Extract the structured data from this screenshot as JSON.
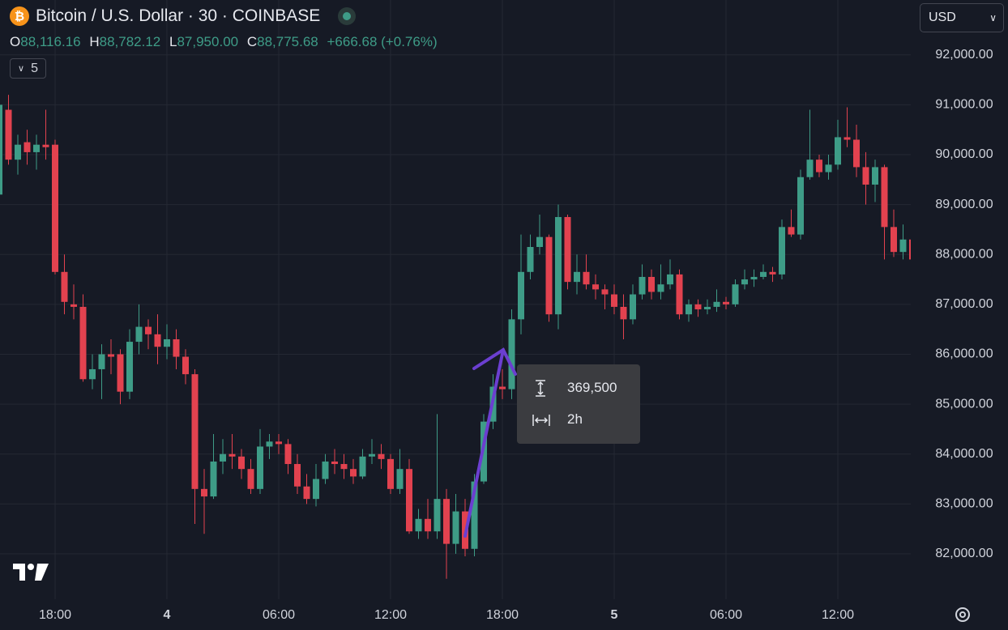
{
  "header": {
    "title": "Bitcoin / U.S. Dollar · 30 · COINBASE",
    "ohlc": [
      {
        "key": "O",
        "value": "88,116.16"
      },
      {
        "key": "H",
        "value": "88,782.12"
      },
      {
        "key": "L",
        "value": "87,950.00"
      },
      {
        "key": "C",
        "value": "88,775.68"
      }
    ],
    "change": "+666.68 (+0.76%)",
    "indicators": "5",
    "currency": "USD"
  },
  "measure": {
    "price_range": "369,500",
    "time_range": "2h"
  },
  "chart_data": {
    "type": "candlestick",
    "up_color": "#3e9c87",
    "down_color": "#e2424f",
    "grid": true,
    "ylim": [
      81090,
      93100
    ],
    "yticks": [
      {
        "value": 82000,
        "label": "82,000.00"
      },
      {
        "value": 83000,
        "label": "83,000.00"
      },
      {
        "value": 84000,
        "label": "84,000.00"
      },
      {
        "value": 85000,
        "label": "85,000.00"
      },
      {
        "value": 86000,
        "label": "86,000.00"
      },
      {
        "value": 87000,
        "label": "87,000.00"
      },
      {
        "value": 88000,
        "label": "88,000.00"
      },
      {
        "value": 89000,
        "label": "89,000.00"
      },
      {
        "value": 90000,
        "label": "90,000.00"
      },
      {
        "value": 91000,
        "label": "91,000.00"
      },
      {
        "value": 92000,
        "label": "92,000.00"
      }
    ],
    "categories": [
      null,
      null,
      null,
      null,
      null,
      null,
      "18:00",
      null,
      null,
      null,
      null,
      null,
      null,
      null,
      null,
      null,
      null,
      null,
      "4",
      null,
      null,
      null,
      null,
      null,
      null,
      null,
      null,
      null,
      null,
      null,
      "06:00",
      null,
      null,
      null,
      null,
      null,
      null,
      null,
      null,
      null,
      null,
      null,
      "12:00",
      null,
      null,
      null,
      null,
      null,
      null,
      null,
      null,
      null,
      null,
      null,
      "18:00",
      null,
      null,
      null,
      null,
      null,
      null,
      null,
      null,
      null,
      null,
      null,
      "5",
      null,
      null,
      null,
      null,
      null,
      null,
      null,
      null,
      null,
      null,
      null,
      "06:00",
      null,
      null,
      null,
      null,
      null,
      null,
      null,
      null,
      null,
      null,
      null,
      "12:00",
      null,
      null,
      null,
      null,
      null,
      null,
      null,
      null
    ],
    "open": [
      89200,
      90900,
      89900,
      90250,
      90050,
      90200,
      90200,
      87650,
      87000,
      86950,
      85500,
      85700,
      86000,
      86000,
      85250,
      86250,
      86550,
      86400,
      86150,
      86300,
      85950,
      85600,
      83300,
      83150,
      83850,
      84000,
      83950,
      83700,
      83300,
      84150,
      84250,
      84200,
      83800,
      83350,
      83100,
      83500,
      83850,
      83800,
      83700,
      83550,
      83950,
      84000,
      83900,
      83300,
      83700,
      82450,
      82700,
      82450,
      83100,
      82200,
      82850,
      82100,
      83450,
      84650,
      85350,
      85300,
      86700,
      87650,
      88150,
      88350,
      86800,
      88750,
      87450,
      87650,
      87400,
      87300,
      87200,
      86950,
      86700,
      87200,
      87550,
      87250,
      87400,
      87600,
      86800,
      87000,
      86900,
      86950,
      87050,
      87000,
      87400,
      87500,
      87550,
      87650,
      87600,
      88550,
      88400,
      89550,
      89900,
      89650,
      89800,
      90350,
      90300,
      89750,
      89400,
      89750,
      88550,
      88050,
      88300
    ],
    "high": [
      91200,
      91200,
      90400,
      90500,
      90400,
      90900,
      90300,
      88000,
      87400,
      87200,
      86000,
      86200,
      86300,
      86100,
      86500,
      87000,
      86700,
      86800,
      86600,
      86500,
      86100,
      85700,
      83700,
      84400,
      84300,
      84400,
      84100,
      83900,
      84500,
      84400,
      84400,
      84300,
      84000,
      83600,
      83800,
      84000,
      84100,
      84000,
      83900,
      84100,
      84300,
      84200,
      84000,
      84100,
      83900,
      82900,
      83100,
      84800,
      83300,
      83200,
      83100,
      83600,
      84800,
      85600,
      85700,
      86900,
      88400,
      88400,
      88800,
      88400,
      89000,
      88800,
      88000,
      88000,
      87600,
      87400,
      87400,
      87200,
      87400,
      87800,
      87700,
      87800,
      87900,
      87700,
      87100,
      87100,
      87100,
      87300,
      87150,
      87500,
      87700,
      87700,
      87800,
      87750,
      88700,
      88900,
      89700,
      90900,
      90000,
      90000,
      90700,
      90950,
      90600,
      90050,
      89900,
      89800,
      88900,
      88600,
      88400
    ],
    "low": [
      89000,
      89800,
      89600,
      89800,
      89700,
      89900,
      87600,
      86800,
      86700,
      85450,
      85300,
      85100,
      85600,
      85000,
      85100,
      86000,
      86100,
      85800,
      85900,
      85700,
      85400,
      82600,
      82400,
      83100,
      83600,
      83700,
      83500,
      83200,
      83200,
      83900,
      84000,
      83600,
      83200,
      83000,
      82950,
      83400,
      83600,
      83500,
      83400,
      83500,
      83800,
      83700,
      83200,
      83200,
      82400,
      82300,
      82300,
      82300,
      81500,
      82000,
      81950,
      81950,
      83400,
      84500,
      85100,
      85100,
      86400,
      87500,
      88000,
      86650,
      86500,
      87300,
      87200,
      87300,
      87100,
      86900,
      86800,
      86300,
      86600,
      87100,
      87100,
      87100,
      87300,
      86700,
      86650,
      86750,
      86800,
      86850,
      86900,
      86950,
      87300,
      87350,
      87500,
      87450,
      87500,
      88350,
      88300,
      89500,
      89550,
      89500,
      89700,
      90150,
      89550,
      89000,
      89050,
      87900,
      87950,
      87900,
      87550
    ],
    "close": [
      91000,
      89900,
      90200,
      90050,
      90200,
      90150,
      87650,
      87050,
      86950,
      85500,
      85700,
      86000,
      85950,
      85250,
      86250,
      86550,
      86400,
      86150,
      86300,
      85950,
      85600,
      83300,
      83150,
      83850,
      84000,
      83950,
      83700,
      83300,
      84150,
      84250,
      84200,
      83800,
      83350,
      83100,
      83500,
      83850,
      83800,
      83700,
      83550,
      83950,
      84000,
      83900,
      83300,
      83700,
      82450,
      82700,
      82450,
      83100,
      82200,
      82850,
      82100,
      83450,
      84650,
      85350,
      85300,
      86700,
      87650,
      88150,
      88350,
      86800,
      88750,
      87450,
      87650,
      87400,
      87300,
      87200,
      86950,
      86700,
      87200,
      87550,
      87250,
      87400,
      87600,
      86800,
      87000,
      86900,
      86950,
      87050,
      87000,
      87400,
      87500,
      87550,
      87650,
      87600,
      88550,
      88400,
      89550,
      89900,
      89650,
      89800,
      90350,
      90300,
      89750,
      89400,
      89750,
      88550,
      88050,
      88300,
      87900
    ]
  }
}
